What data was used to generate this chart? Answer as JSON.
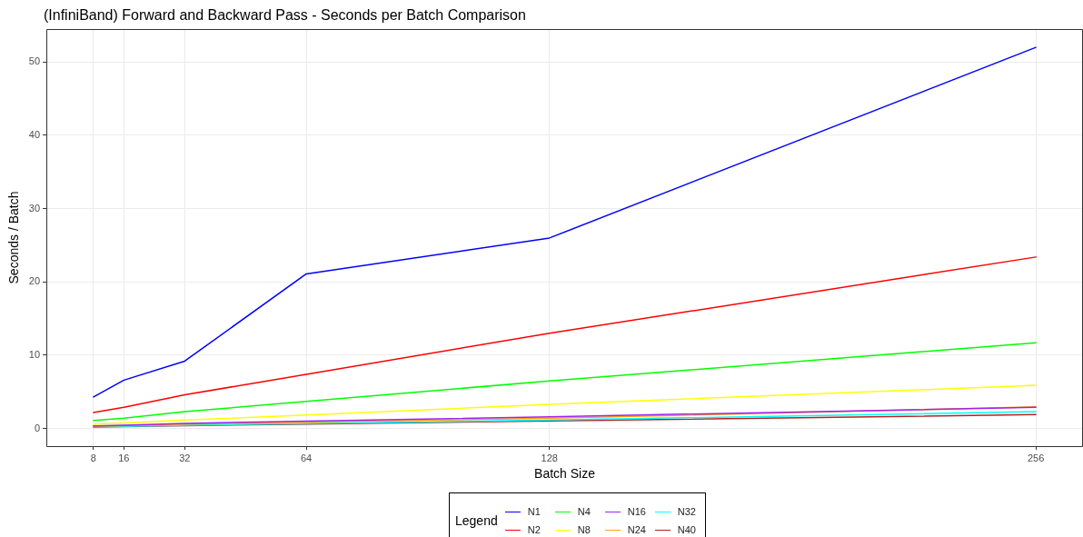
{
  "chart_data": {
    "type": "line",
    "title": "(InfiniBand) Forward and Backward Pass  -  Seconds per Batch Comparison",
    "xlabel": "Batch Size",
    "ylabel": "Seconds / Batch",
    "legend_title": "Legend",
    "x": [
      8,
      16,
      32,
      64,
      128,
      256
    ],
    "xlim": [
      -4.4,
      268.4
    ],
    "xticks": [
      8,
      16,
      32,
      64,
      128,
      256
    ],
    "ylim": [
      -2.4,
      54.5
    ],
    "yticks": [
      0,
      10,
      20,
      30,
      40,
      50
    ],
    "grid": true,
    "legend": "bottom",
    "marker": "none",
    "line_style": "solid",
    "series": [
      {
        "name": "N1",
        "color": "#0000ff",
        "values": [
          4.3,
          6.6,
          9.2,
          21.1,
          26.0,
          52.0
        ]
      },
      {
        "name": "N2",
        "color": "#ff0000",
        "values": [
          2.2,
          2.9,
          4.6,
          7.4,
          13.0,
          23.4
        ]
      },
      {
        "name": "N4",
        "color": "#00ff00",
        "values": [
          1.1,
          1.4,
          2.3,
          3.7,
          6.5,
          11.7
        ]
      },
      {
        "name": "N8",
        "color": "#ffff00",
        "values": [
          0.6,
          0.75,
          1.15,
          1.85,
          3.3,
          5.9
        ]
      },
      {
        "name": "N16",
        "color": "#a020f0",
        "values": [
          0.35,
          0.45,
          0.7,
          1.0,
          1.6,
          2.9
        ]
      },
      {
        "name": "N24",
        "color": "#ffa500",
        "values": [
          0.3,
          0.4,
          0.6,
          0.85,
          1.4,
          2.95
        ]
      },
      {
        "name": "N32",
        "color": "#00ffff",
        "values": [
          0.25,
          0.3,
          0.45,
          0.7,
          1.15,
          2.3
        ]
      },
      {
        "name": "N40",
        "color": "#b22222",
        "values": [
          0.2,
          0.25,
          0.4,
          0.6,
          1.05,
          1.9
        ]
      }
    ]
  }
}
